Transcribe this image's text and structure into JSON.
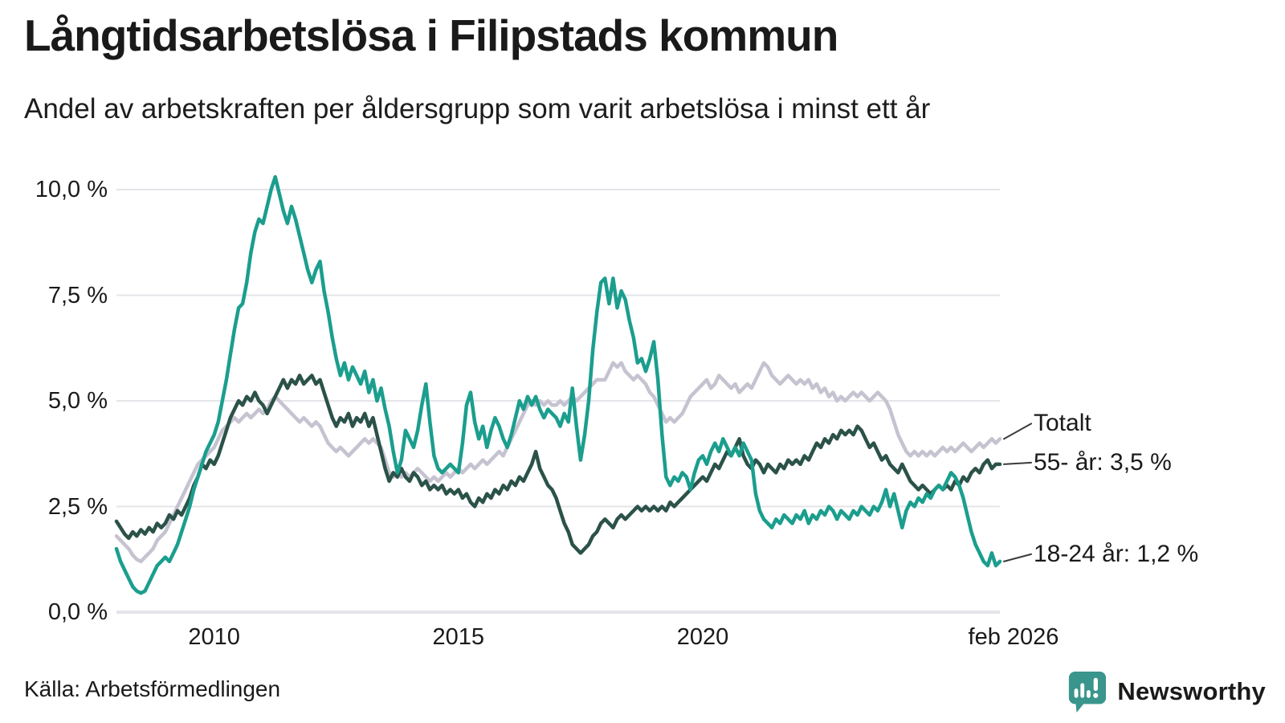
{
  "chart_data": {
    "type": "line",
    "title": "Långtidsarbetslösa i Filipstads kommun",
    "subtitle": "Andel av arbetskraften per åldersgrupp som varit arbetslösa i minst ett år",
    "source": "Källa: Arbetsförmedlingen",
    "x_start": 2008.0,
    "x_end": 2026.0833,
    "points_per_year": 12,
    "x_unit": "month",
    "ylim": [
      0,
      10.5
    ],
    "grid": "horizontal-only",
    "legend_position": "right-end-labels",
    "grid_color": "#e5e4e9",
    "y_ticks": [
      {
        "value": 10.0,
        "label": "10,0 %"
      },
      {
        "value": 7.5,
        "label": "7,5 %"
      },
      {
        "value": 5.0,
        "label": "5,0 %"
      },
      {
        "value": 2.5,
        "label": "2,5 %"
      },
      {
        "value": 0.0,
        "label": "0,0 %"
      }
    ],
    "x_ticks": [
      {
        "value": 2010,
        "label": "2010"
      },
      {
        "value": 2015,
        "label": "2015"
      },
      {
        "value": 2020,
        "label": "2020"
      },
      {
        "value": 2026.0833,
        "label": "feb 2026"
      }
    ],
    "series": [
      {
        "name": "Totalt",
        "end_label": "Totalt",
        "last_value_label": "",
        "color": "#c6c3d1",
        "values": [
          1.8,
          1.7,
          1.6,
          1.5,
          1.35,
          1.25,
          1.2,
          1.3,
          1.4,
          1.5,
          1.7,
          1.8,
          1.9,
          2.1,
          2.3,
          2.5,
          2.7,
          2.9,
          3.1,
          3.3,
          3.5,
          3.6,
          3.7,
          3.8,
          3.9,
          4.1,
          4.3,
          4.4,
          4.5,
          4.6,
          4.5,
          4.6,
          4.7,
          4.6,
          4.7,
          4.8,
          4.7,
          4.8,
          5.0,
          5.1,
          5.0,
          4.9,
          4.8,
          4.7,
          4.6,
          4.5,
          4.6,
          4.5,
          4.4,
          4.5,
          4.4,
          4.2,
          4.0,
          3.9,
          3.8,
          3.9,
          3.8,
          3.7,
          3.8,
          3.9,
          4.0,
          4.1,
          4.0,
          4.1,
          4.0,
          3.9,
          3.6,
          3.3,
          3.2,
          3.3,
          3.2,
          3.3,
          3.2,
          3.3,
          3.4,
          3.3,
          3.2,
          3.1,
          3.2,
          3.1,
          3.2,
          3.3,
          3.2,
          3.3,
          3.4,
          3.3,
          3.4,
          3.5,
          3.4,
          3.5,
          3.6,
          3.5,
          3.6,
          3.7,
          3.8,
          3.7,
          3.9,
          4.1,
          4.3,
          4.5,
          4.7,
          4.9,
          5.0,
          4.9,
          5.0,
          4.9,
          5.0,
          4.9,
          4.9,
          5.0,
          4.9,
          5.0,
          5.1,
          5.0,
          5.1,
          5.2,
          5.3,
          5.4,
          5.5,
          5.5,
          5.5,
          5.7,
          5.9,
          5.8,
          5.9,
          5.7,
          5.6,
          5.5,
          5.6,
          5.5,
          5.4,
          5.2,
          5.1,
          4.9,
          4.7,
          4.5,
          4.6,
          4.5,
          4.6,
          4.7,
          4.9,
          5.1,
          5.2,
          5.3,
          5.4,
          5.5,
          5.3,
          5.4,
          5.6,
          5.5,
          5.4,
          5.3,
          5.4,
          5.2,
          5.3,
          5.4,
          5.3,
          5.5,
          5.7,
          5.9,
          5.8,
          5.6,
          5.5,
          5.4,
          5.5,
          5.6,
          5.5,
          5.4,
          5.5,
          5.4,
          5.5,
          5.3,
          5.4,
          5.2,
          5.3,
          5.1,
          5.2,
          5.0,
          5.1,
          5.0,
          5.1,
          5.2,
          5.1,
          5.2,
          5.1,
          5.0,
          5.1,
          5.2,
          5.1,
          5.0,
          4.8,
          4.5,
          4.2,
          4.0,
          3.8,
          3.7,
          3.8,
          3.7,
          3.8,
          3.7,
          3.8,
          3.7,
          3.8,
          3.9,
          3.8,
          3.9,
          3.8,
          3.9,
          4.0,
          3.9,
          3.8,
          3.9,
          4.0,
          3.9,
          4.0,
          4.1,
          4.0,
          4.1
        ]
      },
      {
        "name": "55- år",
        "end_label": "55- år: 3,5 %",
        "last_value_label": "3,5 %",
        "color": "#2b5249",
        "values": [
          2.15,
          2.0,
          1.85,
          1.75,
          1.9,
          1.8,
          1.95,
          1.85,
          2.0,
          1.9,
          2.1,
          2.0,
          2.1,
          2.3,
          2.2,
          2.4,
          2.3,
          2.5,
          2.7,
          3.0,
          3.2,
          3.5,
          3.4,
          3.6,
          3.5,
          3.7,
          4.0,
          4.3,
          4.6,
          4.8,
          5.0,
          4.9,
          5.1,
          5.0,
          5.2,
          5.0,
          4.9,
          4.7,
          4.9,
          5.1,
          5.3,
          5.5,
          5.3,
          5.5,
          5.4,
          5.6,
          5.4,
          5.5,
          5.6,
          5.4,
          5.5,
          5.2,
          4.9,
          4.6,
          4.4,
          4.6,
          4.5,
          4.7,
          4.4,
          4.6,
          4.5,
          4.7,
          4.4,
          4.6,
          4.2,
          3.8,
          3.4,
          3.1,
          3.3,
          3.2,
          3.4,
          3.2,
          3.1,
          3.3,
          3.2,
          3.0,
          3.1,
          2.9,
          3.0,
          2.9,
          3.0,
          2.8,
          2.9,
          2.8,
          2.9,
          2.7,
          2.8,
          2.6,
          2.5,
          2.7,
          2.6,
          2.8,
          2.7,
          2.9,
          2.8,
          3.0,
          2.9,
          3.1,
          3.0,
          3.2,
          3.1,
          3.3,
          3.5,
          3.8,
          3.4,
          3.2,
          3.0,
          2.9,
          2.7,
          2.4,
          2.1,
          1.9,
          1.6,
          1.5,
          1.4,
          1.5,
          1.6,
          1.8,
          1.9,
          2.1,
          2.2,
          2.1,
          2.0,
          2.2,
          2.3,
          2.2,
          2.3,
          2.4,
          2.5,
          2.4,
          2.5,
          2.4,
          2.5,
          2.4,
          2.5,
          2.4,
          2.6,
          2.5,
          2.6,
          2.7,
          2.8,
          2.9,
          3.0,
          3.1,
          3.2,
          3.1,
          3.3,
          3.5,
          3.4,
          3.6,
          3.8,
          3.7,
          3.9,
          4.1,
          3.7,
          3.5,
          3.4,
          3.6,
          3.5,
          3.3,
          3.5,
          3.4,
          3.3,
          3.5,
          3.4,
          3.6,
          3.5,
          3.6,
          3.5,
          3.7,
          3.6,
          3.8,
          4.0,
          3.9,
          4.1,
          4.0,
          4.2,
          4.1,
          4.3,
          4.2,
          4.3,
          4.2,
          4.4,
          4.3,
          4.1,
          3.9,
          4.0,
          3.8,
          3.6,
          3.7,
          3.5,
          3.4,
          3.3,
          3.5,
          3.3,
          3.1,
          3.0,
          2.9,
          3.0,
          2.9,
          2.8,
          2.9,
          3.0,
          2.9,
          3.0,
          2.9,
          3.1,
          3.0,
          3.2,
          3.1,
          3.3,
          3.4,
          3.3,
          3.5,
          3.6,
          3.4,
          3.5,
          3.5
        ]
      },
      {
        "name": "18-24 år",
        "end_label": "18-24 år: 1,2 %",
        "last_value_label": "1,2 %",
        "color": "#1b9e8e",
        "values": [
          1.5,
          1.2,
          1.0,
          0.8,
          0.6,
          0.5,
          0.45,
          0.5,
          0.7,
          0.9,
          1.1,
          1.2,
          1.3,
          1.2,
          1.4,
          1.6,
          1.9,
          2.2,
          2.5,
          2.9,
          3.2,
          3.5,
          3.8,
          4.0,
          4.2,
          4.5,
          5.0,
          5.5,
          6.1,
          6.7,
          7.2,
          7.3,
          7.8,
          8.5,
          9.0,
          9.3,
          9.2,
          9.6,
          10.0,
          10.3,
          9.9,
          9.5,
          9.2,
          9.6,
          9.3,
          8.9,
          8.5,
          8.1,
          7.8,
          8.1,
          8.3,
          7.6,
          7.1,
          6.5,
          6.0,
          5.6,
          5.9,
          5.5,
          5.8,
          5.6,
          5.4,
          5.7,
          5.2,
          5.5,
          5.0,
          5.3,
          4.8,
          4.4,
          3.8,
          3.3,
          3.6,
          4.3,
          4.1,
          3.9,
          4.3,
          4.9,
          5.4,
          4.5,
          3.7,
          3.4,
          3.3,
          3.4,
          3.5,
          3.4,
          3.3,
          4.0,
          4.9,
          5.2,
          4.5,
          4.1,
          4.4,
          3.9,
          4.3,
          4.6,
          4.4,
          4.1,
          3.9,
          4.2,
          4.6,
          5.0,
          4.8,
          5.1,
          4.9,
          5.1,
          4.8,
          4.6,
          4.8,
          4.7,
          4.6,
          4.4,
          4.7,
          4.5,
          5.3,
          4.4,
          3.6,
          4.2,
          5.0,
          6.2,
          7.1,
          7.8,
          7.9,
          7.3,
          7.9,
          7.2,
          7.6,
          7.4,
          6.9,
          6.5,
          5.9,
          6.0,
          5.7,
          6.0,
          6.4,
          5.5,
          4.2,
          3.2,
          3.0,
          3.2,
          3.1,
          3.3,
          3.2,
          2.9,
          3.3,
          3.6,
          3.7,
          3.5,
          3.8,
          4.0,
          3.8,
          4.1,
          3.9,
          3.7,
          3.9,
          3.7,
          4.0,
          3.8,
          3.6,
          2.8,
          2.4,
          2.2,
          2.1,
          2.0,
          2.2,
          2.1,
          2.3,
          2.2,
          2.1,
          2.3,
          2.2,
          2.4,
          2.1,
          2.3,
          2.2,
          2.4,
          2.3,
          2.5,
          2.4,
          2.2,
          2.4,
          2.3,
          2.2,
          2.4,
          2.3,
          2.5,
          2.4,
          2.3,
          2.5,
          2.4,
          2.6,
          2.9,
          2.5,
          2.8,
          2.4,
          2.0,
          2.4,
          2.6,
          2.5,
          2.7,
          2.6,
          2.8,
          2.7,
          2.9,
          3.0,
          2.9,
          3.1,
          3.3,
          3.2,
          3.0,
          2.7,
          2.3,
          1.9,
          1.6,
          1.4,
          1.2,
          1.1,
          1.4,
          1.1,
          1.2
        ]
      }
    ]
  },
  "branding": {
    "brand_name": "Newsworthy",
    "logo_icon": "newsworthy-bar-chart-speech-bubble-icon",
    "brand_color": "#3a958c"
  }
}
